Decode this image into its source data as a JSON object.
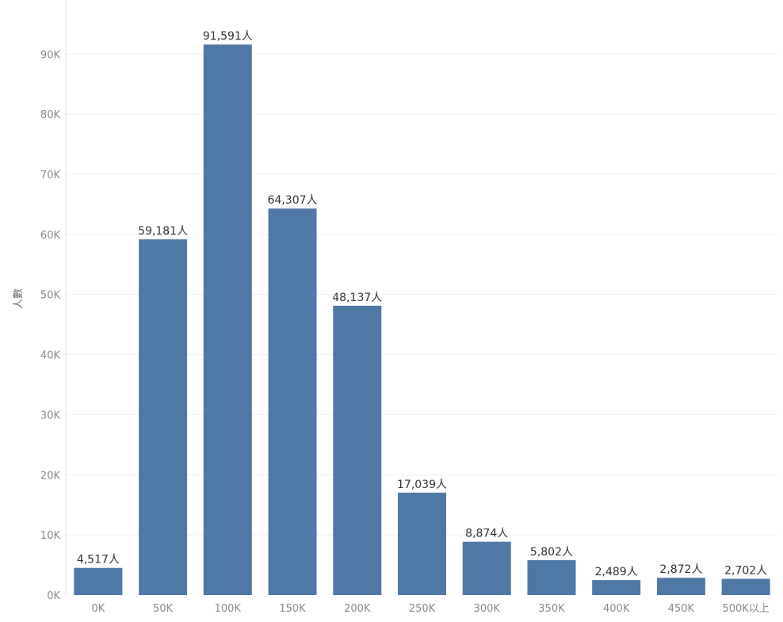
{
  "chart_data": {
    "type": "bar",
    "title": "",
    "xlabel": "",
    "ylabel": "人數",
    "categories": [
      "0K",
      "50K",
      "100K",
      "150K",
      "200K",
      "250K",
      "300K",
      "350K",
      "400K",
      "450K",
      "500K以上"
    ],
    "values": [
      4517,
      59181,
      91591,
      64307,
      48137,
      17039,
      8874,
      5802,
      2489,
      2872,
      2702
    ],
    "data_labels": [
      "4,517人",
      "59,181人",
      "91,591人",
      "64,307人",
      "48,137人",
      "17,039人",
      "8,874人",
      "5,802人",
      "2,489人",
      "2,872人",
      "2,702人"
    ],
    "yticks": [
      0,
      10000,
      20000,
      30000,
      40000,
      50000,
      60000,
      70000,
      80000,
      90000
    ],
    "ytick_labels": [
      "0K",
      "10K",
      "20K",
      "30K",
      "40K",
      "50K",
      "60K",
      "70K",
      "80K",
      "90K"
    ],
    "ylim": [
      0,
      97000
    ],
    "grid": true,
    "bar_color": "#4e79a7"
  }
}
